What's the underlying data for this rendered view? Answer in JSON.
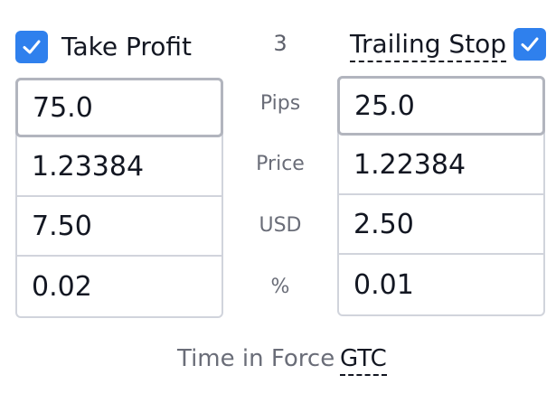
{
  "take_profit": {
    "label": "Take Profit",
    "checked": true,
    "pips": "75.0",
    "price": "1.23384",
    "usd": "7.50",
    "percent": "0.02"
  },
  "trailing_stop": {
    "label": "Trailing Stop",
    "checked": true,
    "pips": "25.0",
    "price": "1.22384",
    "usd": "2.50",
    "percent": "0.01"
  },
  "center": {
    "number": "3",
    "units": [
      "Pips",
      "Price",
      "USD",
      "%"
    ]
  },
  "time_in_force": {
    "label": "Time in Force",
    "value": "GTC"
  },
  "colors": {
    "accent": "#2f80ed",
    "border": "#d1d4dc",
    "muted_text": "#6a6d78"
  },
  "icons": {
    "checkbox": "checkmark-icon"
  }
}
